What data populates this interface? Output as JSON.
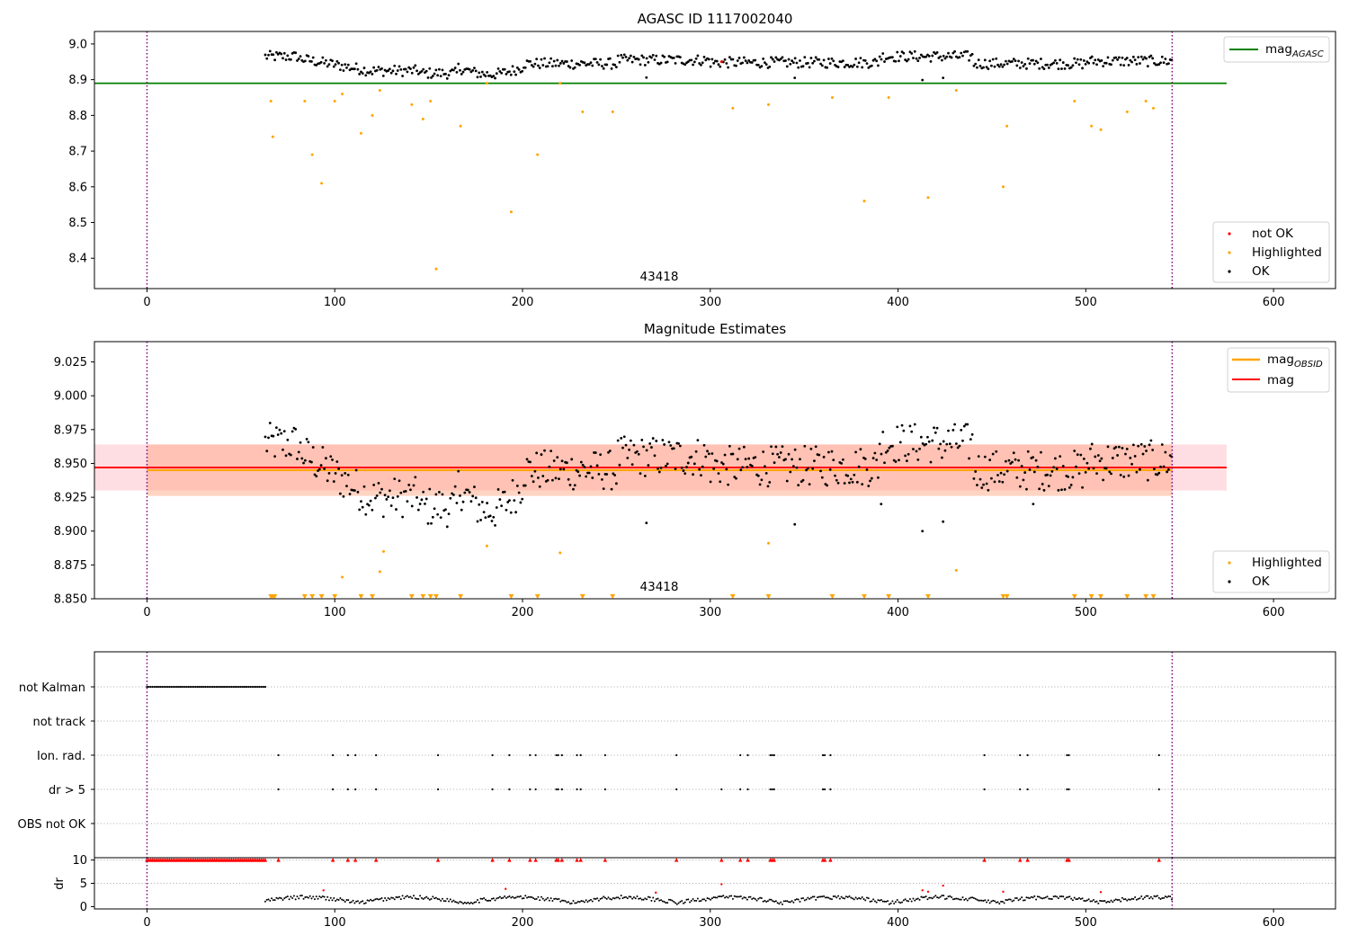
{
  "chart_data": [
    {
      "type": "scatter",
      "title": "AGASC ID 1117002040",
      "annotation": "43418",
      "xlim": [
        -28,
        633
      ],
      "ylim": [
        8.315,
        9.035
      ],
      "xticks": [
        "0",
        "100",
        "200",
        "300",
        "400",
        "500",
        "600"
      ],
      "yticks": [
        "8.4",
        "8.5",
        "8.6",
        "8.7",
        "8.8",
        "8.9",
        "9.0"
      ],
      "hlines": [
        {
          "name": "mag_AGASC",
          "y": 8.89,
          "x_range": [
            -28,
            575
          ],
          "color": "#008000"
        }
      ],
      "vlines": [
        0,
        546
      ],
      "legend_lines": {
        "label_main": "mag",
        "label_sub": "AGASC"
      },
      "legend_points": [
        "not OK",
        "Highlighted",
        "OK"
      ],
      "series": [
        {
          "name": "OK",
          "color": "#000000",
          "values": "ok_points"
        },
        {
          "name": "Highlighted",
          "color": "#ffa500",
          "points": [
            [
              66,
              8.84
            ],
            [
              67,
              8.74
            ],
            [
              84,
              8.84
            ],
            [
              88,
              8.69
            ],
            [
              93,
              8.61
            ],
            [
              100,
              8.84
            ],
            [
              104,
              8.86
            ],
            [
              114,
              8.75
            ],
            [
              120,
              8.8
            ],
            [
              124,
              8.87
            ],
            [
              141,
              8.83
            ],
            [
              147,
              8.79
            ],
            [
              151,
              8.84
            ],
            [
              154,
              8.37
            ],
            [
              167,
              8.77
            ],
            [
              181,
              8.89
            ],
            [
              194,
              8.53
            ],
            [
              208,
              8.69
            ],
            [
              220,
              8.89
            ],
            [
              232,
              8.81
            ],
            [
              248,
              8.81
            ],
            [
              312,
              8.82
            ],
            [
              331,
              8.83
            ],
            [
              365,
              8.85
            ],
            [
              382,
              8.56
            ],
            [
              395,
              8.85
            ],
            [
              416,
              8.57
            ],
            [
              431,
              8.87
            ],
            [
              456,
              8.6
            ],
            [
              458,
              8.77
            ],
            [
              494,
              8.84
            ],
            [
              503,
              8.77
            ],
            [
              508,
              8.76
            ],
            [
              522,
              8.81
            ],
            [
              532,
              8.84
            ],
            [
              536,
              8.82
            ]
          ]
        },
        {
          "name": "not OK",
          "color": "#ff0000",
          "points": [
            [
              306,
              8.95
            ]
          ]
        }
      ]
    },
    {
      "type": "scatter",
      "title": "Magnitude Estimates",
      "annotation": "43418",
      "xlim": [
        -28,
        633
      ],
      "ylim": [
        8.85,
        9.04
      ],
      "xticks": [
        "0",
        "100",
        "200",
        "300",
        "400",
        "500",
        "600"
      ],
      "yticks": [
        "8.850",
        "8.875",
        "8.900",
        "8.925",
        "8.950",
        "8.975",
        "9.000",
        "9.025"
      ],
      "bands": [
        {
          "name": "mag band",
          "y": [
            8.93,
            8.964
          ],
          "x_range": [
            -28,
            575
          ],
          "color": "#ffb6c1",
          "opacity": 0.45
        },
        {
          "name": "mag_OBSID band",
          "y": [
            8.926,
            8.964
          ],
          "x_range": [
            0,
            546
          ],
          "color": "#ffa07a",
          "opacity": 0.45
        }
      ],
      "hlines": [
        {
          "name": "mag_OBSID",
          "y": 8.945,
          "x_range": [
            0,
            546
          ],
          "color": "#ffa500"
        },
        {
          "name": "mag",
          "y": 8.947,
          "x_range": [
            -28,
            575
          ],
          "color": "#ff0000"
        }
      ],
      "vlines": [
        0,
        546
      ],
      "legend_lines": {
        "label_a_main": "mag",
        "label_a_sub": "OBSID",
        "label_b": "mag"
      },
      "legend_points": [
        "Highlighted",
        "OK"
      ],
      "highlighted_in_range": [
        [
          104,
          8.866
        ],
        [
          124,
          8.87
        ],
        [
          126,
          8.885
        ],
        [
          181,
          8.889
        ],
        [
          220,
          8.884
        ],
        [
          331,
          8.891
        ],
        [
          431,
          8.871
        ]
      ],
      "highlighted_below_range_x": [
        66,
        67,
        68,
        84,
        88,
        93,
        100,
        114,
        120,
        141,
        147,
        151,
        154,
        167,
        194,
        208,
        232,
        248,
        312,
        331,
        365,
        382,
        395,
        416,
        456,
        458,
        494,
        503,
        508,
        522,
        532,
        536
      ]
    },
    {
      "type": "scatter",
      "title": "",
      "categories": [
        "not Kalman",
        "not track",
        "Ion. rad.",
        "dr > 5",
        "OBS not OK"
      ],
      "flags": {
        "not_kalman_range": [
          0,
          63
        ],
        "ion_rad_x": [
          70,
          99,
          107,
          111,
          122,
          155,
          184,
          193,
          204,
          207,
          218,
          219,
          221,
          229,
          231,
          244,
          282,
          316,
          320,
          332,
          333,
          334,
          360,
          361,
          364,
          446,
          465,
          469,
          490,
          491,
          539
        ],
        "dr_gt_5_x": [
          70,
          99,
          107,
          111,
          122,
          155,
          184,
          193,
          204,
          207,
          218,
          219,
          221,
          229,
          231,
          244,
          282,
          306,
          316,
          320,
          332,
          333,
          334,
          360,
          361,
          364,
          446,
          465,
          469,
          490,
          491,
          539
        ]
      },
      "dr_panel": {
        "ylabel": "dr",
        "yticks": [
          "0",
          "5",
          "10"
        ],
        "ylim": [
          -0.5,
          10.5
        ],
        "red_triangles_at": 10,
        "red_points": [
          [
            94,
            3.5
          ],
          [
            191,
            3.8
          ],
          [
            271,
            3.0
          ],
          [
            306,
            4.8
          ],
          [
            413,
            3.5
          ],
          [
            416,
            3.2
          ],
          [
            424,
            4.5
          ],
          [
            456,
            3.2
          ],
          [
            508,
            3.1
          ]
        ]
      },
      "xticks": [
        "0",
        "100",
        "200",
        "300",
        "400",
        "500",
        "600"
      ],
      "vlines": [
        0,
        546
      ]
    }
  ]
}
